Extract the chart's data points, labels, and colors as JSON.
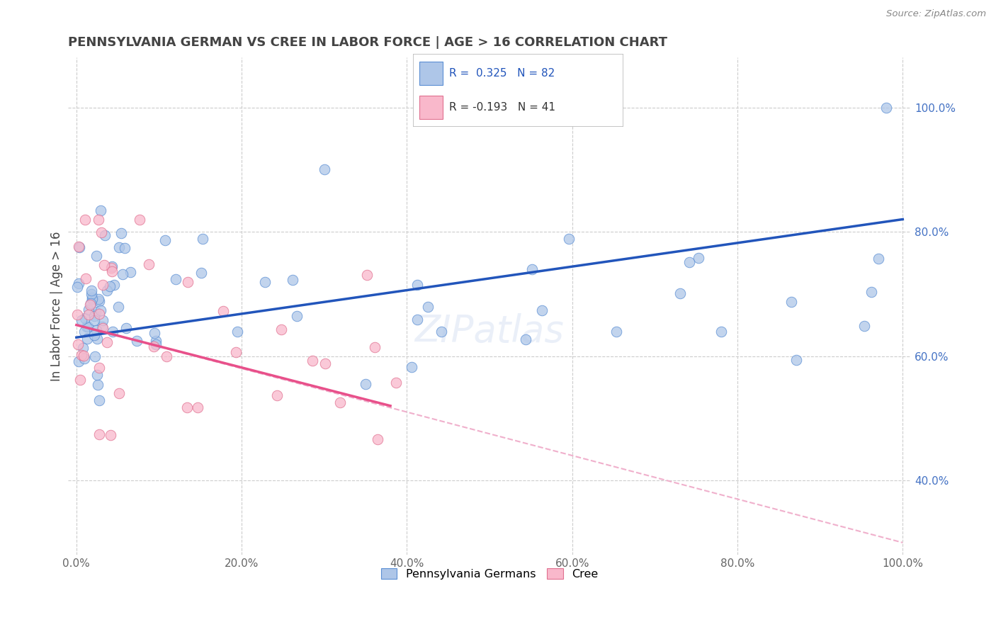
{
  "title": "PENNSYLVANIA GERMAN VS CREE IN LABOR FORCE | AGE > 16 CORRELATION CHART",
  "source": "Source: ZipAtlas.com",
  "ylabel": "In Labor Force | Age > 16",
  "xlim": [
    -1,
    101
  ],
  "ylim": [
    28,
    108
  ],
  "yticks": [
    40,
    60,
    80,
    100
  ],
  "xticks": [
    0,
    20,
    40,
    60,
    80,
    100
  ],
  "xticklabels": [
    "0.0%",
    "20.0%",
    "40.0%",
    "60.0%",
    "80.0%",
    "100.0%"
  ],
  "yticklabels": [
    "40.0%",
    "60.0%",
    "80.0%",
    "100.0%"
  ],
  "legend_r_blue": "R =  0.325",
  "legend_n_blue": "N = 82",
  "legend_r_pink": "R = -0.193",
  "legend_n_pink": "N = 41",
  "legend_labels": [
    "Pennsylvania Germans",
    "Cree"
  ],
  "blue_scatter_color": "#aec6e8",
  "blue_edge_color": "#5b8fd4",
  "pink_scatter_color": "#f9b8cb",
  "pink_edge_color": "#e07090",
  "blue_line_color": "#2255bb",
  "pink_line_color": "#e8508a",
  "pink_dash_color": "#f0b0cc",
  "grid_color": "#cccccc",
  "title_color": "#444444",
  "ytick_color": "#4472c4",
  "xtick_color": "#666666",
  "bg_color": "#ffffff",
  "blue_trend_x0": 0,
  "blue_trend_y0": 63,
  "blue_trend_x1": 100,
  "blue_trend_y1": 82,
  "pink_solid_x0": 0,
  "pink_solid_y0": 65,
  "pink_solid_x1": 38,
  "pink_solid_y1": 52,
  "pink_dash_x0": 0,
  "pink_dash_y0": 65,
  "pink_dash_x1": 100,
  "pink_dash_y1": 30
}
